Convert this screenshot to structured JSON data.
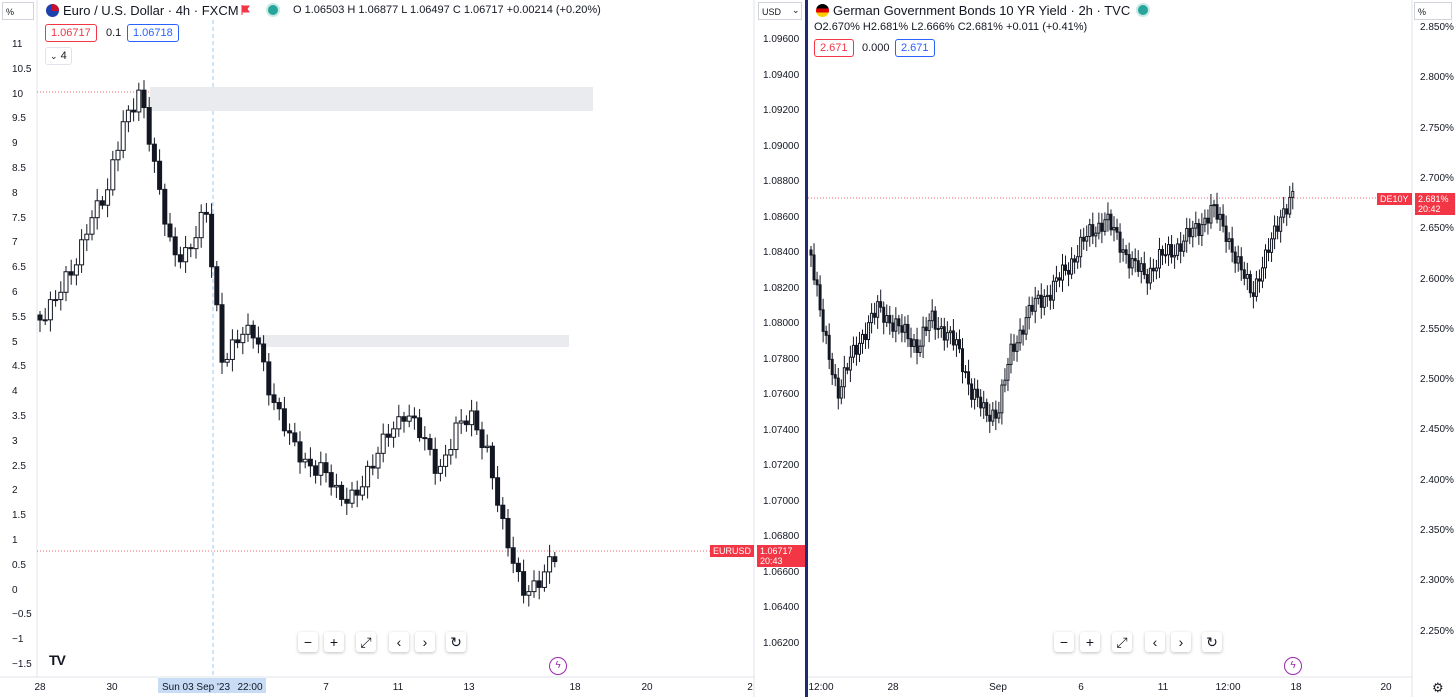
{
  "left_chart": {
    "title": "Euro / U.S. Dollar · 4h · FXCM",
    "ohlc": "O 1.06503  H 1.06877  L 1.06497  C 1.06717  +0.00214 (+0.20%)",
    "bid": "1.06717",
    "spread": "0.1",
    "ask": "1.06718",
    "indicator_count": "4",
    "unit_select": "%",
    "left_axis_ticks": [
      "11",
      "10.5",
      "10",
      "9.5",
      "9",
      "8.5",
      "8",
      "7.5",
      "7",
      "6.5",
      "6",
      "5.5",
      "5",
      "4.5",
      "4",
      "3.5",
      "3",
      "2.5",
      "2",
      "1.5",
      "1",
      "0.5",
      "0",
      "−0.5",
      "−1",
      "−1.5"
    ],
    "right_axis_ticks": [
      "1.09600",
      "1.09400",
      "1.09200",
      "1.09000",
      "1.08800",
      "1.08600",
      "1.08400",
      "1.08200",
      "1.08000",
      "1.07800",
      "1.07600",
      "1.07400",
      "1.07200",
      "1.07000",
      "1.06800",
      "1.06600",
      "1.06400",
      "1.06200"
    ],
    "right_select": "USD",
    "x_ticks": [
      "28",
      "30",
      "Sun 03 Sep '23",
      "22:00",
      "7",
      "11",
      "13",
      "18",
      "20",
      "2"
    ],
    "symbol_tag": "EURUSD",
    "price_tag": "1.06717",
    "countdown": "20:43",
    "brand": "TV"
  },
  "right_chart": {
    "title": "German Government Bonds 10 YR Yield · 2h · TVC",
    "ohlc": "O2.670%  H2.681%  L2.666%  C2.681%  +0.011 (+0.41%)",
    "bid": "2.671",
    "spread": "0.000",
    "ask": "2.671",
    "unit_select": "%",
    "right_axis_ticks": [
      "2.850%",
      "2.800%",
      "2.750%",
      "2.700%",
      "2.650%",
      "2.600%",
      "2.550%",
      "2.500%",
      "2.450%",
      "2.400%",
      "2.350%",
      "2.300%",
      "2.250%"
    ],
    "x_ticks": [
      "12:00",
      "28",
      "Sep",
      "6",
      "11",
      "12:00",
      "18",
      "20"
    ],
    "symbol_tag": "DE10Y",
    "price_tag": "2.681%",
    "countdown": "20:42"
  },
  "controls": {
    "zoom_out": "−",
    "zoom_in": "+",
    "fit": "⤢",
    "back": "‹",
    "forward": "›",
    "reset": "↻"
  },
  "colors": {
    "accent": "#f23645",
    "blue": "#2962ff",
    "divider": "#1e2a78"
  }
}
